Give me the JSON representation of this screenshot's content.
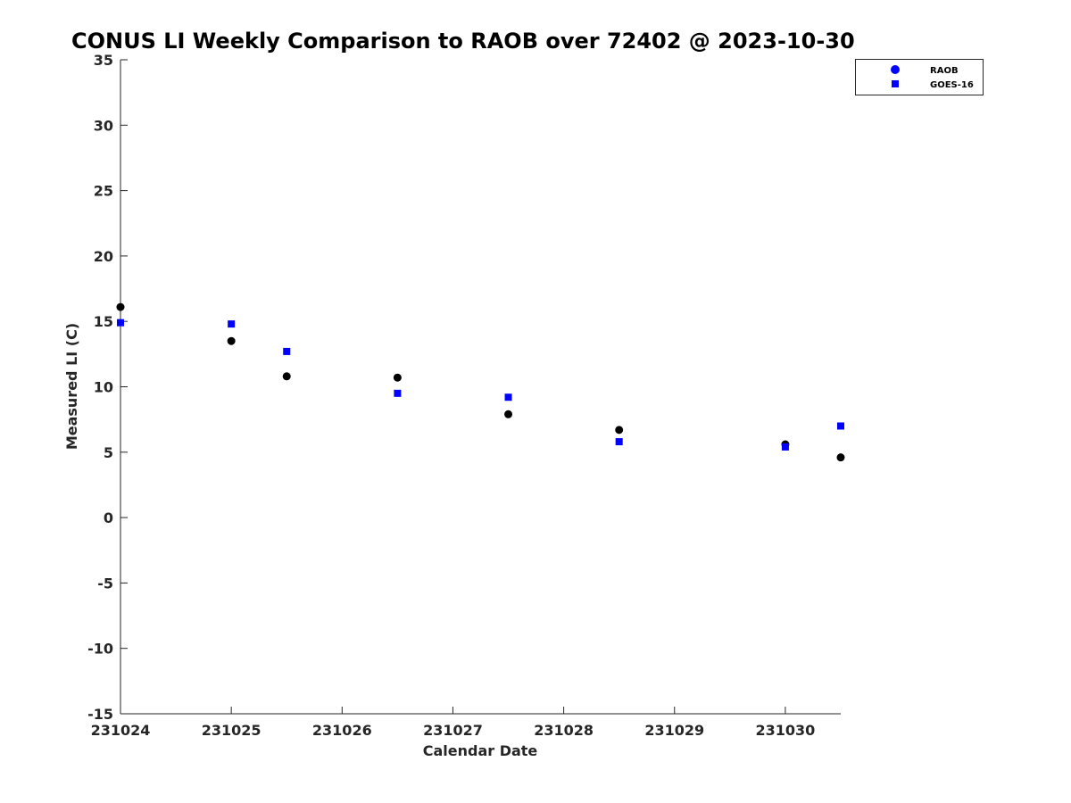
{
  "chart_data": {
    "type": "scatter",
    "title": "CONUS LI Weekly Comparison to RAOB over 72402 @ 2023-10-30",
    "xlabel": "Calendar Date",
    "ylabel": "Measured LI (C)",
    "xlim": [
      0,
      6.5
    ],
    "ylim": [
      -15,
      35
    ],
    "x_ticks": [
      {
        "value": 0,
        "label": "231024"
      },
      {
        "value": 1,
        "label": "231025"
      },
      {
        "value": 2,
        "label": "231026"
      },
      {
        "value": 3,
        "label": "231027"
      },
      {
        "value": 4,
        "label": "231028"
      },
      {
        "value": 5,
        "label": "231029"
      },
      {
        "value": 6,
        "label": "231030"
      }
    ],
    "y_ticks": [
      35,
      30,
      25,
      20,
      15,
      10,
      5,
      0,
      -5,
      -10,
      -15
    ],
    "grid": false,
    "legend_position": "top-right",
    "series": [
      {
        "name": "RAOB",
        "marker": "circle",
        "color": "#000000",
        "legend_color": "#0000ff",
        "x": [
          0,
          1,
          1.5,
          2.5,
          3.5,
          4.5,
          6,
          6.5
        ],
        "y": [
          16.1,
          13.5,
          10.8,
          10.7,
          7.9,
          6.7,
          5.6,
          4.6
        ]
      },
      {
        "name": "GOES-16",
        "marker": "square",
        "color": "#0000ff",
        "legend_color": "#0000ff",
        "x": [
          0,
          1,
          1.5,
          2.5,
          3.5,
          4.5,
          6,
          6.5
        ],
        "y": [
          14.9,
          14.8,
          12.7,
          9.5,
          9.2,
          5.8,
          5.4,
          7.0
        ]
      }
    ]
  }
}
